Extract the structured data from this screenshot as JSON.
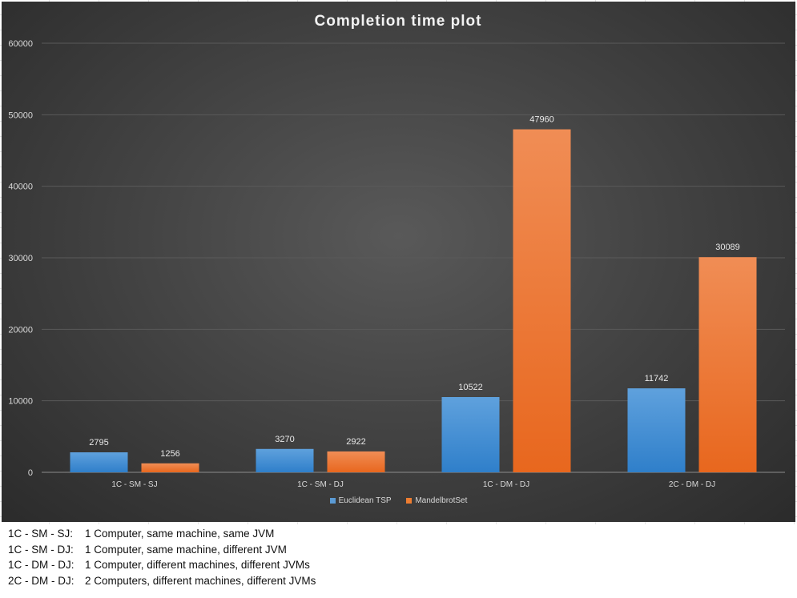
{
  "chart_data": {
    "type": "bar",
    "title": "Completion time plot",
    "categories": [
      "1C - SM - SJ",
      "1C - SM - DJ",
      "1C - DM - DJ",
      "2C - DM - DJ"
    ],
    "series": [
      {
        "name": "Euclidean TSP",
        "values": [
          2795,
          3270,
          10522,
          11742
        ],
        "color": "#5b9bd5"
      },
      {
        "name": "MandelbrotSet",
        "values": [
          1256,
          2922,
          47960,
          30089
        ],
        "color": "#ed7d31"
      }
    ],
    "ylim": [
      0,
      60000
    ],
    "yticks": [
      0,
      10000,
      20000,
      30000,
      40000,
      50000,
      60000
    ],
    "grid": true,
    "legend_position": "bottom"
  },
  "legend": {
    "series_0": "Euclidean TSP",
    "series_1": "MandelbrotSet"
  },
  "notes": [
    {
      "code": "1C - SM - SJ:",
      "text": "1 Computer, same machine, same JVM"
    },
    {
      "code": "1C - SM - DJ:",
      "text": "1 Computer, same machine, different JVM"
    },
    {
      "code": "1C - DM - DJ:",
      "text": "1 Computer, different machines, different JVMs"
    },
    {
      "code": "2C - DM - DJ:",
      "text": "2 Computers, different machines, different JVMs"
    }
  ]
}
